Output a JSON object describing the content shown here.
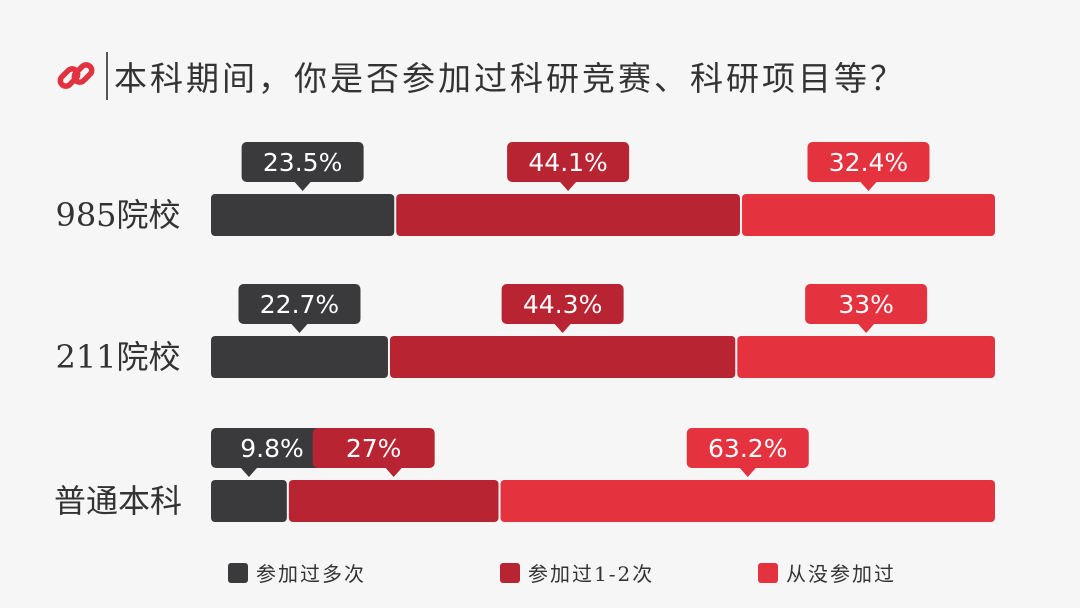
{
  "title": "本科期间，你是否参加过科研竞赛、科研项目等？",
  "icon": "link-icon",
  "colors": {
    "accent": "#e0333f",
    "text": "#333333",
    "background": "#f6f6f6"
  },
  "chart_data": {
    "type": "bar",
    "stacked": true,
    "orientation": "horizontal",
    "value_format": "percent",
    "categories": [
      "985院校",
      "211院校",
      "普通本科"
    ],
    "series": [
      {
        "name": "参加过多次",
        "color": "#3a3a3c",
        "values": [
          23.5,
          22.7,
          9.8
        ],
        "labels": [
          "23.5%",
          "22.7%",
          "9.8%"
        ]
      },
      {
        "name": "参加过1-2次",
        "color": "#b92433",
        "values": [
          44.1,
          44.3,
          27
        ],
        "labels": [
          "44.1%",
          "44.3%",
          "27%"
        ]
      },
      {
        "name": "从没参加过",
        "color": "#e4323f",
        "values": [
          32.4,
          33,
          63.2
        ],
        "labels": [
          "32.4%",
          "33%",
          "63.2%"
        ]
      }
    ],
    "legend_position": "bottom"
  }
}
